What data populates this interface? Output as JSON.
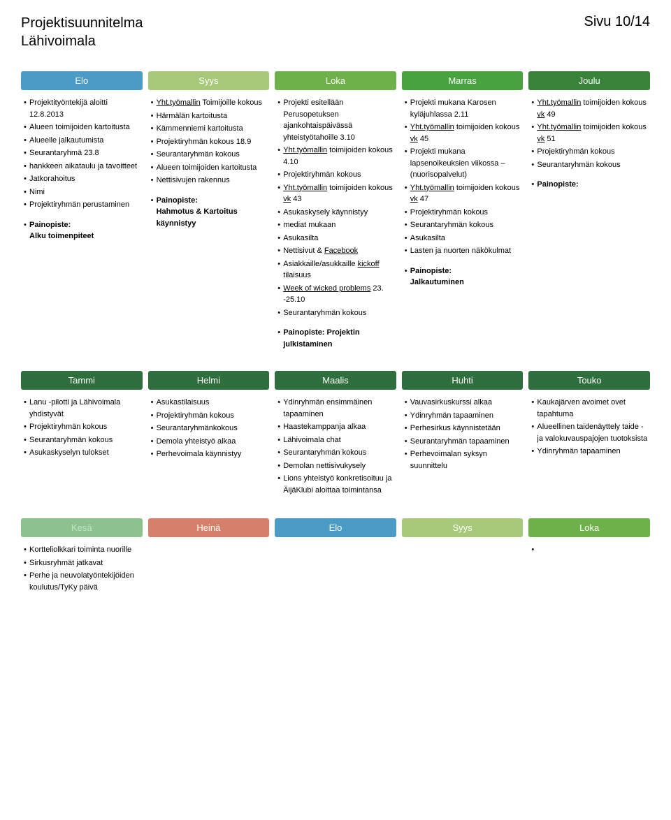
{
  "header": {
    "title_line1": "Projektisuunnitelma",
    "title_line2": "Lähivoimala",
    "page": "Sivu 10/14"
  },
  "rows": [
    {
      "cols": [
        {
          "label": "Elo",
          "color": "#4a9cc7",
          "items": [
            "Projektityöntekijä aloitti 12.8.2013",
            "Alueen toimijoiden kartoitusta",
            "Alueelle jalkautumista",
            "Seurantaryhmä 23.8",
            "hankkeen aikataulu ja tavoitteet",
            "Jatkorahoitus",
            "Nimi",
            "Projektiryhmän perustaminen"
          ],
          "focus_label": "Painopiste:",
          "focus_text": "Alku toimenpiteet"
        },
        {
          "label": "Syys",
          "color": "#a7c97a",
          "items": [
            "<u>Yht.työmallin</u> Toimijoille kokous",
            "Härmälän kartoitusta",
            "Kämmenniemi kartoitusta",
            "Projektiryhmän kokous 18.9",
            "Seurantaryhmän kokous",
            "Alueen toimijoiden kartoitusta",
            "Nettisivujen rakennus"
          ],
          "focus_label": "Painopiste:",
          "focus_text": "Hahmotus & Kartoitus käynnistyy"
        },
        {
          "label": "Loka",
          "color": "#6eb04a",
          "items": [
            "Projekti esitellään Perusopetuksen ajankohtaispäivässä yhteistyötahoille 3.10",
            "<u>Yht.työmallin</u> toimijoiden kokous 4.10",
            "Projektiryhmän kokous",
            "<u>Yht.työmallin</u> toimijoiden kokous <u>vk</u> 43",
            "Asukaskysely käynnistyy",
            "mediat mukaan",
            "Asukasilta",
            "Nettisivut & <u>Facebook</u>",
            "Asiakkaille/asukkaille <u>kickoff</u> tilaisuus",
            "<u>Week of wicked problems</u> 23. -25.10",
            "Seurantaryhmän kokous"
          ],
          "focus_label": "Painopiste: Projektin julkistaminen",
          "focus_text": ""
        },
        {
          "label": "Marras",
          "color": "#48a33f",
          "items": [
            "Projekti mukana Karosen kyläjuhlassa 2.11",
            "<u>Yht.työmallin</u> toimijoiden kokous <u>vk</u> 45",
            "Projekti mukana lapsenoikeuksien viikossa – (nuorisopalvelut)",
            "<u>Yht.työmallin</u> toimijoiden kokous <u>vk</u> 47",
            "Projektiryhmän kokous",
            "Seurantaryhmän kokous",
            "Asukasilta",
            "Lasten ja nuorten näkökulmat"
          ],
          "focus_label": "Painopiste:",
          "focus_text": "Jalkautuminen"
        },
        {
          "label": "Joulu",
          "color": "#38833a",
          "items": [
            "<u>Yht.työmallin</u> toimijoiden kokous <u>vk</u> 49",
            "<u>Yht.työmallin</u> toimijoiden kokous <u>vk</u> 51",
            "Projektiryhmän kokous",
            "Seurantaryhmän kokous"
          ],
          "focus_label": "Painopiste:",
          "focus_text": ""
        }
      ]
    },
    {
      "cols": [
        {
          "label": "Tammi",
          "color": "#2f6e3d",
          "items": [
            "Lanu -pilotti ja Lähivoimala yhdistyvät",
            "Projektiryhmän kokous",
            "Seurantaryhmän kokous",
            "Asukaskyselyn tulokset"
          ]
        },
        {
          "label": "Helmi",
          "color": "#2f6e3d",
          "items": [
            "Asukastilaisuus",
            "Projektiryhmän kokous",
            "Seurantaryhmänkokous",
            "Demola yhteistyö alkaa",
            "Perhevoimala käynnistyy"
          ]
        },
        {
          "label": "Maalis",
          "color": "#2f6e3d",
          "items": [
            "Ydinryhmän ensimmäinen tapaaminen",
            "Haastekamppanja alkaa",
            "Lähivoimala chat",
            "Seurantaryhmän kokous",
            "Demolan nettisivukysely",
            "Lions yhteistyö konkretisoituu ja ÄijäKlubi aloittaa toimintansa"
          ]
        },
        {
          "label": "Huhti",
          "color": "#2f6e3d",
          "items": [
            "Vauvasirkuskurssi alkaa",
            "Ydinryhmän tapaaminen",
            "Perhesirkus käynnistetään",
            "Seurantaryhmän tapaaminen",
            "Perhevoimalan syksyn suunnittelu"
          ]
        },
        {
          "label": "Touko",
          "color": "#2f6e3d",
          "items": [
            "Kaukajärven avoimet ovet tapahtuma",
            "Alueellinen taidenäyttely taide -ja valokuvauspajojen tuotoksista",
            "Ydinryhmän tapaaminen"
          ]
        }
      ]
    },
    {
      "cols": [
        {
          "label": "Kesä",
          "color": "#8cc28e",
          "faded": true,
          "items": [
            "Kortteliolkkari toiminta nuorille",
            "Sirkusryhmät jatkavat",
            "Perhe ja neuvolatyöntekijöiden koulutus/TyKy päivä"
          ]
        },
        {
          "label": "Heinä",
          "color": "#d6806a",
          "items": []
        },
        {
          "label": "Elo",
          "color": "#4a9cc7",
          "items": []
        },
        {
          "label": "Syys",
          "color": "#a7c97a",
          "items": []
        },
        {
          "label": "Loka",
          "color": "#6eb04a",
          "items": [
            ""
          ]
        }
      ]
    }
  ]
}
